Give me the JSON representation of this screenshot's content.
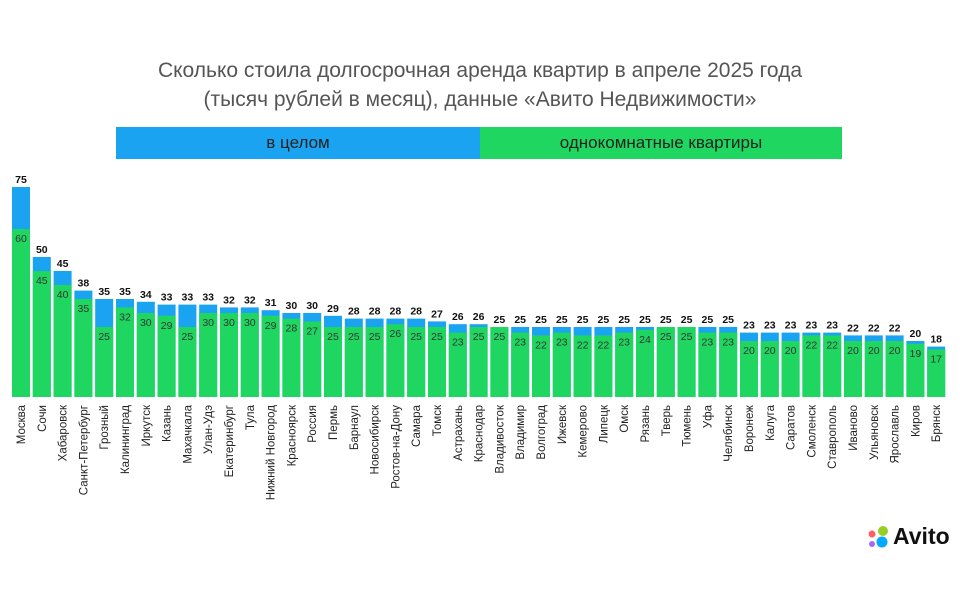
{
  "title": {
    "line1": "Сколько стоила долгосрочная аренда квартир в апреле 2025 года",
    "line2": "(тысяч рублей в месяц), данные «Авито Недвижимости»"
  },
  "legend": {
    "overall": "в целом",
    "one_room": "однокомнатные квартиры"
  },
  "logo": {
    "text": "Avito"
  },
  "colors": {
    "overall": "#1aa3f0",
    "one_room": "#1fd760"
  },
  "chart_data": {
    "type": "bar",
    "layout": "overlapping bars",
    "categories": [
      "Москва",
      "Сочи",
      "Хабаровск",
      "Санкт-Петербург",
      "Грозный",
      "Калининград",
      "Иркутск",
      "Казань",
      "Махачкала",
      "Улан-Удэ",
      "Екатеринбург",
      "Тула",
      "Нижний Новгород",
      "Красноярск",
      "Россия",
      "Пермь",
      "Барнаул",
      "Новосибирск",
      "Ростов-на-Дону",
      "Самара",
      "Томск",
      "Астрахань",
      "Краснодар",
      "Владивосток",
      "Владимир",
      "Волгоград",
      "Ижевск",
      "Кемерово",
      "Липецк",
      "Омск",
      "Рязань",
      "Тверь",
      "Тюмень",
      "Уфа",
      "Челябинск",
      "Воронеж",
      "Калуга",
      "Саратов",
      "Смоленск",
      "Ставрополь",
      "Иваново",
      "Ульяновск",
      "Ярославль",
      "Киров",
      "Брянск"
    ],
    "series": [
      {
        "name": "в целом",
        "values": [
          75,
          50,
          45,
          38,
          35,
          35,
          34,
          33,
          33,
          33,
          32,
          32,
          31,
          30,
          30,
          29,
          28,
          28,
          28,
          28,
          27,
          26,
          26,
          25,
          25,
          25,
          25,
          25,
          25,
          25,
          25,
          25,
          25,
          25,
          25,
          23,
          23,
          23,
          23,
          23,
          22,
          22,
          22,
          20,
          18
        ]
      },
      {
        "name": "однокомнатные квартиры",
        "values": [
          60,
          45,
          40,
          35,
          25,
          32,
          30,
          29,
          25,
          30,
          30,
          30,
          29,
          28,
          27,
          25,
          25,
          25,
          26,
          25,
          25,
          23,
          25,
          25,
          23,
          22,
          23,
          22,
          22,
          23,
          24,
          25,
          25,
          23,
          23,
          20,
          20,
          20,
          22,
          22,
          20,
          20,
          20,
          19,
          17
        ]
      }
    ],
    "title": "Сколько стоила долгосрочная аренда квартир в апреле 2025 года (тысяч рублей в месяц), данные «Авито Недвижимости»",
    "grid": false,
    "legend": "top"
  }
}
